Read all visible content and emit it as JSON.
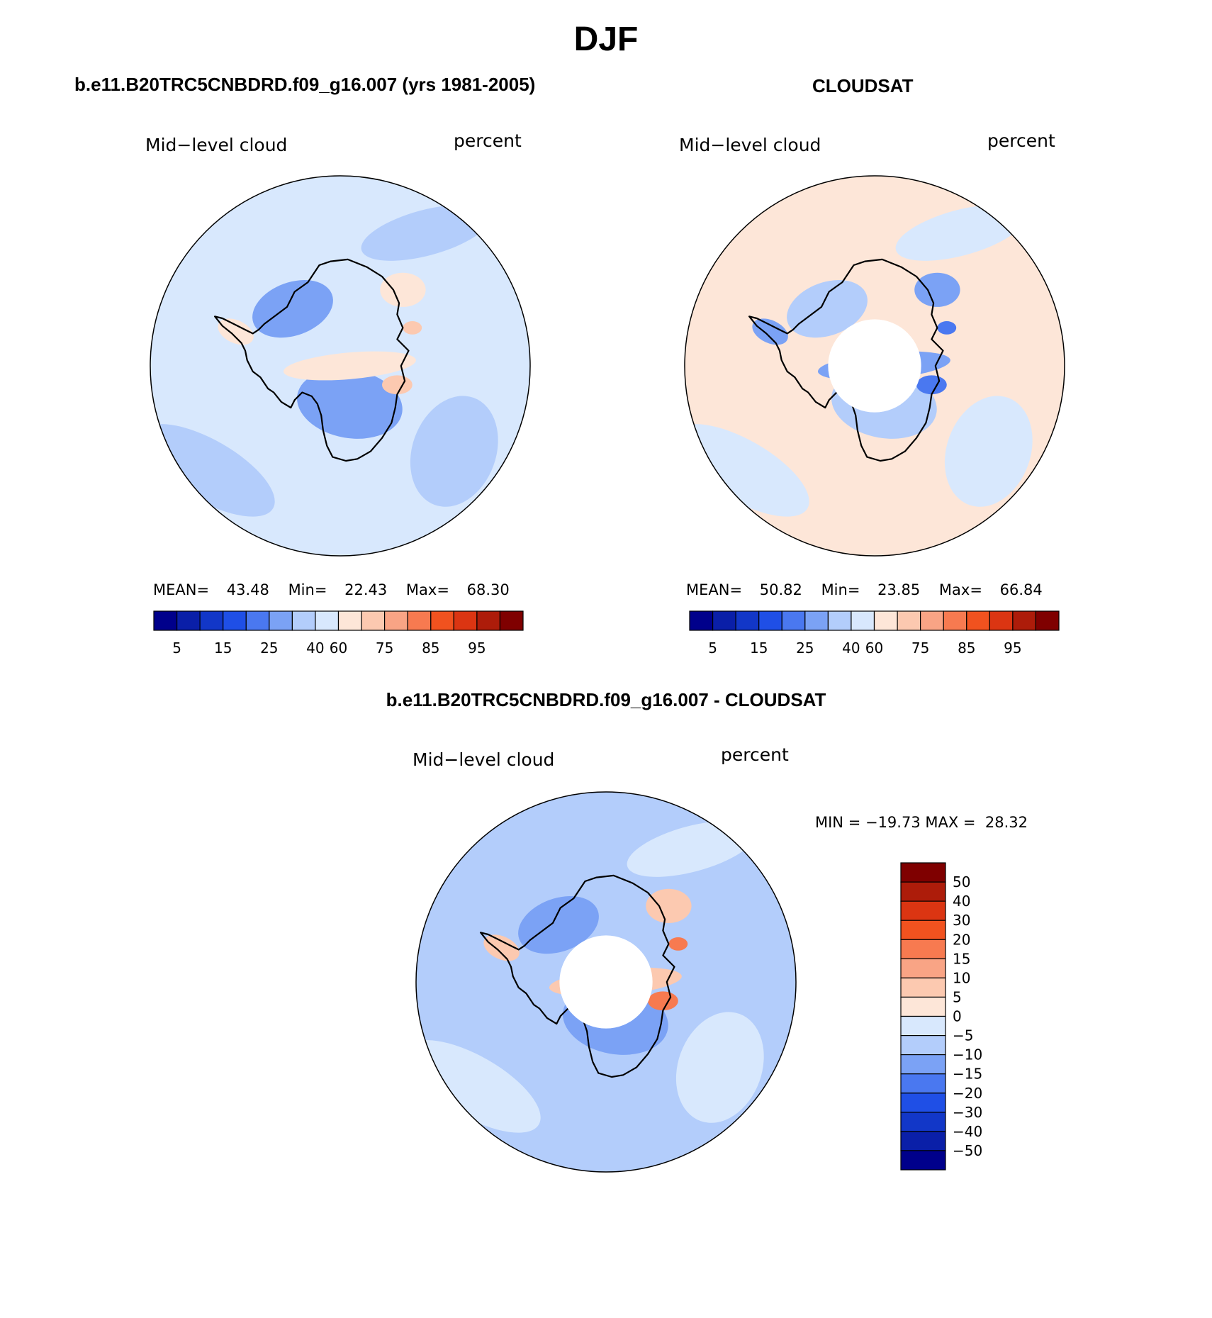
{
  "page": {
    "title": "DJF"
  },
  "panels": [
    {
      "id": "model",
      "heading": "b.e11.B20TRC5CNBDRD.f09_g16.007 (yrs 1981-2005)",
      "variable": "Mid−level cloud",
      "units": "percent",
      "stats": {
        "mean_label": "MEAN=",
        "mean": "43.48",
        "min_label": "Min=",
        "min": "22.43",
        "max_label": "Max=",
        "max": "68.30"
      },
      "colorbar": {
        "colors": [
          "#00008b",
          "#0a1fa8",
          "#1237c8",
          "#1f4fe6",
          "#4a78f0",
          "#7ba2f5",
          "#b3cdfb",
          "#d8e8fd",
          "#fde6d8",
          "#fcc9b0",
          "#f9a485",
          "#f77a50",
          "#f1521f",
          "#db3512",
          "#ad1c0a",
          "#7f0000"
        ],
        "labels": [
          "5",
          "15",
          "25",
          "40",
          "60",
          "75",
          "85",
          "95"
        ]
      },
      "map_colors": {
        "ocean": "#d8e8fd",
        "lower": "#b3cdfb",
        "low": "#7ba2f5",
        "higher": "#fde6d8",
        "high": "#fcc9b0",
        "pole_hole": false
      }
    },
    {
      "id": "obs",
      "heading": "CLOUDSAT",
      "variable": "Mid−level cloud",
      "units": "percent",
      "stats": {
        "mean_label": "MEAN=",
        "mean": "50.82",
        "min_label": "Min=",
        "min": "23.85",
        "max_label": "Max=",
        "max": "66.84"
      },
      "colorbar": {
        "colors": [
          "#00008b",
          "#0a1fa8",
          "#1237c8",
          "#1f4fe6",
          "#4a78f0",
          "#7ba2f5",
          "#b3cdfb",
          "#d8e8fd",
          "#fde6d8",
          "#fcc9b0",
          "#f9a485",
          "#f77a50",
          "#f1521f",
          "#db3512",
          "#ad1c0a",
          "#7f0000"
        ],
        "labels": [
          "5",
          "15",
          "25",
          "40",
          "60",
          "75",
          "85",
          "95"
        ]
      },
      "map_colors": {
        "ocean": "#fde6d8",
        "lower": "#d8e8fd",
        "low": "#b3cdfb",
        "higher": "#7ba2f5",
        "high": "#4a78f0",
        "pole_hole": true
      }
    }
  ],
  "difference": {
    "heading": "b.e11.B20TRC5CNBDRD.f09_g16.007 - CLOUDSAT",
    "variable": "Mid−level cloud",
    "units": "percent",
    "minmax": "MIN = −19.73 MAX =  28.32",
    "colorbar": {
      "colors_top_to_bottom": [
        "#7f0000",
        "#ad1c0a",
        "#db3512",
        "#f1521f",
        "#f77a50",
        "#f9a485",
        "#fcc9b0",
        "#fde6d8",
        "#d8e8fd",
        "#b3cdfb",
        "#7ba2f5",
        "#4a78f0",
        "#1f4fe6",
        "#1237c8",
        "#0a1fa8",
        "#00008b"
      ],
      "labels_top_to_bottom": [
        "50",
        "40",
        "30",
        "20",
        "15",
        "10",
        "5",
        "0",
        "−5",
        "−10",
        "−15",
        "−20",
        "−30",
        "−40",
        "−50"
      ]
    },
    "map_colors": {
      "ocean": "#b3cdfb",
      "lower": "#d8e8fd",
      "low": "#7ba2f5",
      "higher": "#fcc9b0",
      "high": "#f77a50",
      "pole_hole": true
    }
  }
}
